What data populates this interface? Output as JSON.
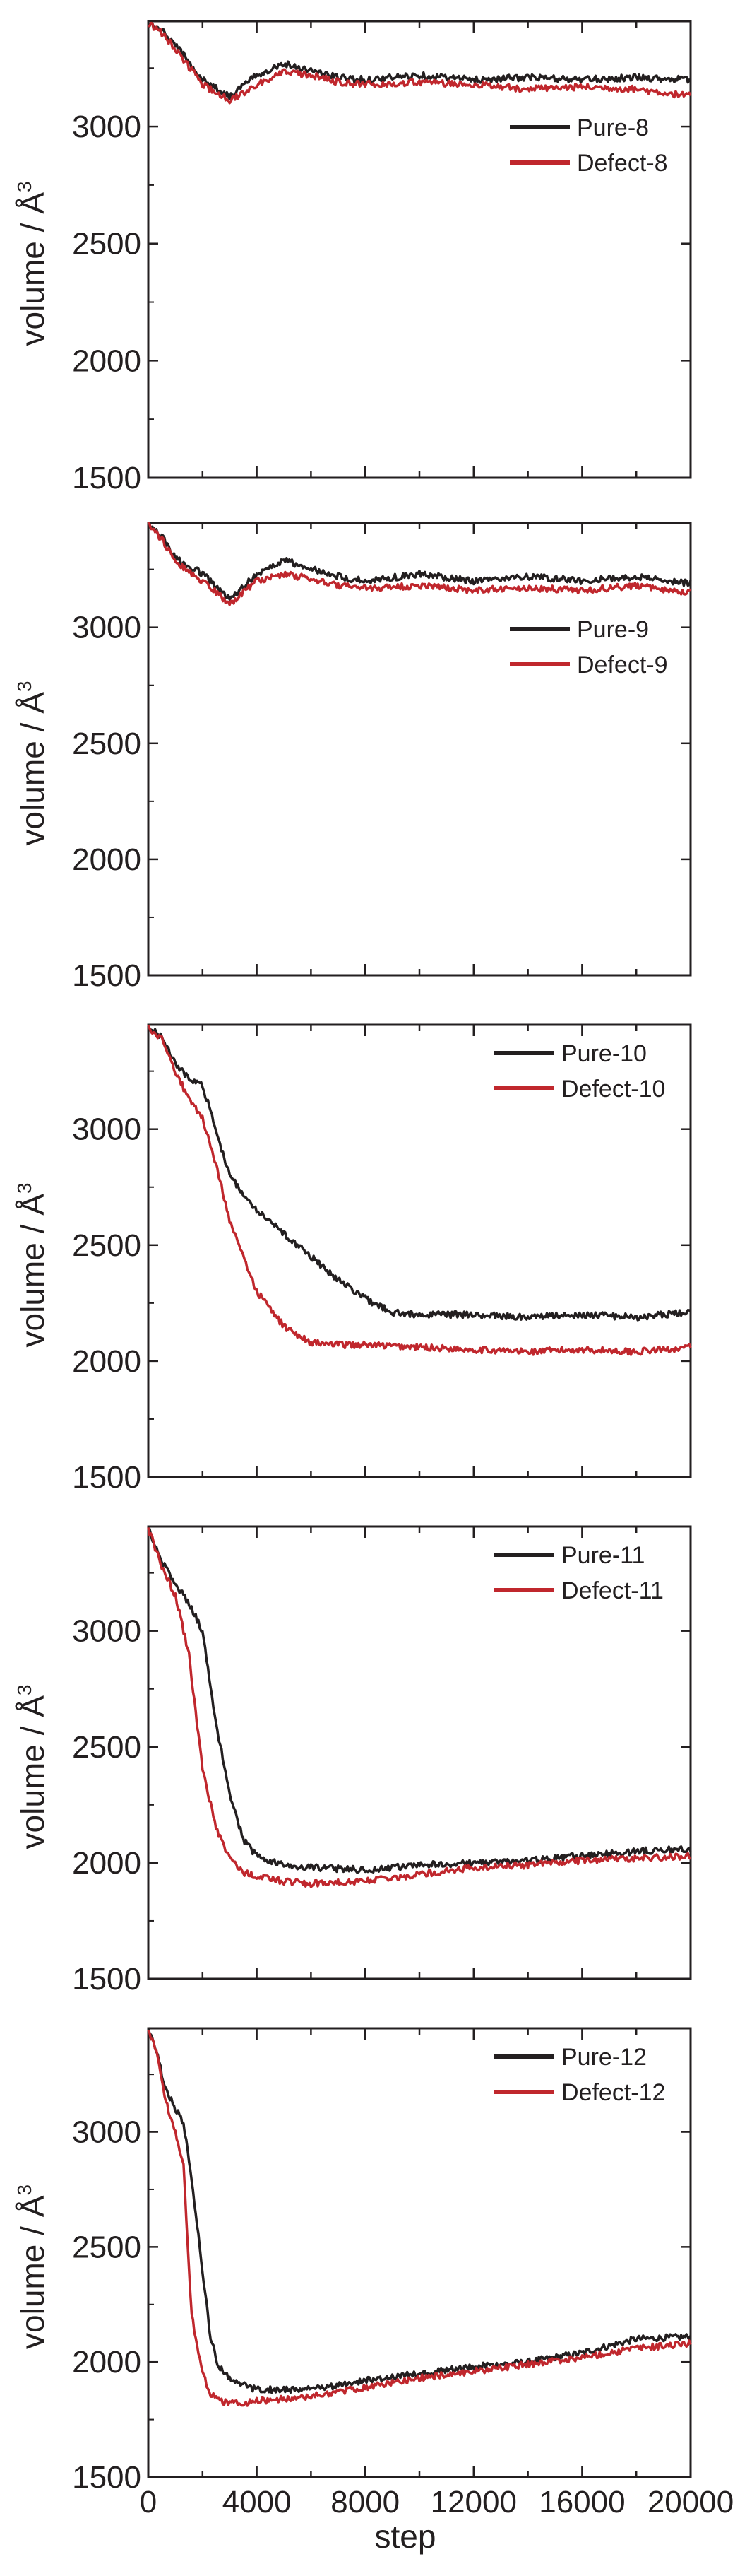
{
  "chart_data": [
    {
      "type": "line",
      "ylabel": "volume / Å",
      "ylabel_superscript": "3",
      "ylim": [
        1500,
        3450
      ],
      "yticks": [
        1500,
        2000,
        2500,
        3000
      ],
      "xlim": [
        0,
        20000
      ],
      "legend_position": "top-right",
      "series": [
        {
          "name": "Pure-8",
          "color": "#231f20",
          "x": [
            0,
            500,
            1000,
            2000,
            3000,
            4000,
            5000,
            6000,
            7000,
            8000,
            10000,
            12000,
            14000,
            16000,
            18000,
            20000
          ],
          "y": [
            3440,
            3410,
            3350,
            3200,
            3130,
            3220,
            3270,
            3240,
            3210,
            3200,
            3220,
            3200,
            3210,
            3200,
            3210,
            3200
          ]
        },
        {
          "name": "Defect-8",
          "color": "#c0272d",
          "x": [
            0,
            500,
            1000,
            2000,
            3000,
            4000,
            5000,
            6000,
            7000,
            8000,
            10000,
            12000,
            14000,
            16000,
            18000,
            20000
          ],
          "y": [
            3440,
            3400,
            3330,
            3180,
            3110,
            3180,
            3230,
            3220,
            3190,
            3180,
            3190,
            3180,
            3160,
            3170,
            3160,
            3130
          ]
        }
      ]
    },
    {
      "type": "line",
      "ylabel": "volume / Å",
      "ylabel_superscript": "3",
      "ylim": [
        1500,
        3450
      ],
      "yticks": [
        1500,
        2000,
        2500,
        3000
      ],
      "xlim": [
        0,
        20000
      ],
      "legend_position": "top-right",
      "series": [
        {
          "name": "Pure-9",
          "color": "#231f20",
          "x": [
            0,
            500,
            1000,
            2000,
            3000,
            4000,
            5000,
            6000,
            7000,
            8000,
            10000,
            12000,
            14000,
            16000,
            18000,
            20000
          ],
          "y": [
            3440,
            3390,
            3300,
            3230,
            3120,
            3230,
            3290,
            3250,
            3220,
            3200,
            3230,
            3200,
            3220,
            3200,
            3220,
            3190
          ]
        },
        {
          "name": "Defect-9",
          "color": "#c0272d",
          "x": [
            0,
            500,
            1000,
            2000,
            3000,
            4000,
            5000,
            6000,
            7000,
            8000,
            10000,
            12000,
            14000,
            16000,
            18000,
            20000
          ],
          "y": [
            3440,
            3380,
            3280,
            3200,
            3100,
            3200,
            3230,
            3210,
            3180,
            3170,
            3180,
            3160,
            3170,
            3160,
            3180,
            3150
          ]
        }
      ]
    },
    {
      "type": "line",
      "ylabel": "volume / Å",
      "ylabel_superscript": "3",
      "ylim": [
        1500,
        3450
      ],
      "yticks": [
        1500,
        2000,
        2500,
        3000
      ],
      "xlim": [
        0,
        20000
      ],
      "legend_position": "top-right",
      "series": [
        {
          "name": "Pure-10",
          "color": "#231f20",
          "x": [
            0,
            500,
            1000,
            1500,
            2000,
            3000,
            4000,
            5000,
            6000,
            7000,
            8000,
            9000,
            10000,
            12000,
            14000,
            16000,
            18000,
            20000
          ],
          "y": [
            3440,
            3400,
            3280,
            3220,
            3190,
            2800,
            2650,
            2550,
            2450,
            2350,
            2270,
            2210,
            2200,
            2200,
            2190,
            2200,
            2190,
            2210
          ]
        },
        {
          "name": "Defect-10",
          "color": "#c0272d",
          "x": [
            0,
            500,
            1000,
            1500,
            2000,
            2500,
            3000,
            4000,
            5000,
            6000,
            7000,
            8000,
            10000,
            12000,
            14000,
            16000,
            18000,
            20000
          ],
          "y": [
            3440,
            3390,
            3250,
            3130,
            3050,
            2850,
            2600,
            2300,
            2150,
            2080,
            2070,
            2070,
            2060,
            2050,
            2040,
            2050,
            2040,
            2060
          ]
        }
      ]
    },
    {
      "type": "line",
      "ylabel": "volume / Å",
      "ylabel_superscript": "3",
      "ylim": [
        1500,
        3450
      ],
      "yticks": [
        1500,
        2000,
        2500,
        3000
      ],
      "xlim": [
        0,
        20000
      ],
      "legend_position": "top-right",
      "series": [
        {
          "name": "Pure-11",
          "color": "#231f20",
          "x": [
            0,
            500,
            1000,
            1500,
            2000,
            2500,
            3000,
            3500,
            4000,
            5000,
            6000,
            8000,
            10000,
            12000,
            14000,
            16000,
            18000,
            20000
          ],
          "y": [
            3440,
            3300,
            3200,
            3120,
            3000,
            2600,
            2300,
            2100,
            2030,
            1990,
            1980,
            1970,
            1990,
            2000,
            2010,
            2030,
            2050,
            2060
          ]
        },
        {
          "name": "Defect-11",
          "color": "#c0272d",
          "x": [
            0,
            500,
            1000,
            1500,
            2000,
            2500,
            3000,
            3500,
            4000,
            5000,
            6000,
            8000,
            10000,
            12000,
            14000,
            16000,
            18000,
            20000
          ],
          "y": [
            3440,
            3280,
            3150,
            2900,
            2400,
            2150,
            2020,
            1960,
            1940,
            1920,
            1910,
            1920,
            1950,
            1980,
            1990,
            2010,
            2020,
            2030
          ]
        }
      ]
    },
    {
      "type": "line",
      "ylabel": "volume / Å",
      "ylabel_superscript": "3",
      "ylim": [
        1500,
        3450
      ],
      "yticks": [
        1500,
        2000,
        2500,
        3000
      ],
      "xlim": [
        0,
        20000
      ],
      "xticks": [
        0,
        4000,
        8000,
        12000,
        16000,
        20000
      ],
      "xlabel": "step",
      "legend_position": "top-right",
      "series": [
        {
          "name": "Pure-12",
          "color": "#231f20",
          "x": [
            0,
            300,
            600,
            1000,
            1300,
            1600,
            2000,
            2300,
            2600,
            3000,
            3500,
            4000,
            6000,
            8000,
            10000,
            12000,
            14000,
            16000,
            18000,
            20000
          ],
          "y": [
            3440,
            3350,
            3200,
            3100,
            3040,
            2800,
            2400,
            2100,
            1980,
            1930,
            1900,
            1880,
            1880,
            1920,
            1950,
            1980,
            2000,
            2040,
            2100,
            2110
          ]
        },
        {
          "name": "Defect-12",
          "color": "#c0272d",
          "x": [
            0,
            300,
            600,
            1000,
            1300,
            1600,
            2000,
            2300,
            2600,
            3000,
            3500,
            4000,
            6000,
            8000,
            10000,
            12000,
            14000,
            16000,
            18000,
            20000
          ],
          "y": [
            3440,
            3350,
            3150,
            3000,
            2850,
            2200,
            1950,
            1860,
            1830,
            1820,
            1820,
            1830,
            1850,
            1890,
            1930,
            1960,
            1990,
            2020,
            2060,
            2080
          ]
        }
      ]
    }
  ]
}
